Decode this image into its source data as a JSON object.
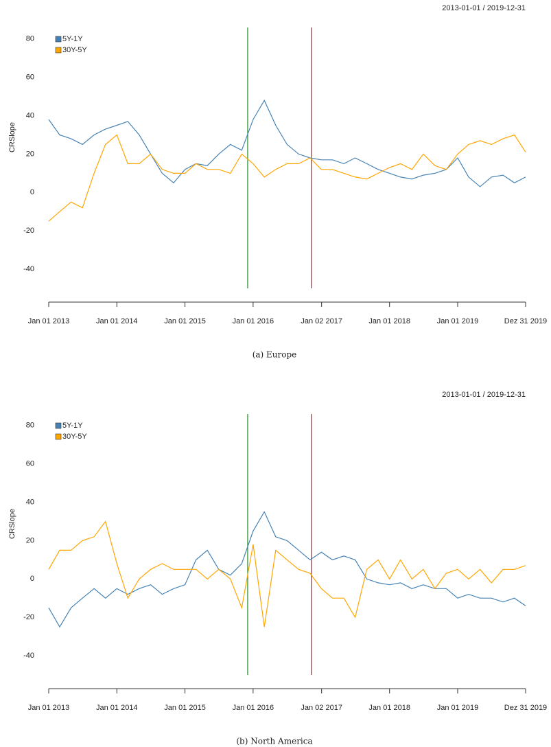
{
  "chart_data": [
    {
      "type": "line",
      "subtitle": "2013-01-01 / 2019-12-31",
      "ylabel": "CRSlope",
      "caption": "(a) Europe",
      "x": [
        "2013-01-01",
        "2013-03-01",
        "2013-05-01",
        "2013-07-01",
        "2013-09-01",
        "2013-11-01",
        "2014-01-01",
        "2014-03-01",
        "2014-05-01",
        "2014-07-01",
        "2014-09-01",
        "2014-11-01",
        "2015-01-01",
        "2015-03-01",
        "2015-05-01",
        "2015-07-01",
        "2015-09-01",
        "2015-11-01",
        "2016-01-01",
        "2016-03-01",
        "2016-05-01",
        "2016-07-01",
        "2016-09-01",
        "2016-11-01",
        "2017-01-01",
        "2017-03-01",
        "2017-05-01",
        "2017-07-01",
        "2017-09-01",
        "2017-11-01",
        "2018-01-01",
        "2018-03-01",
        "2018-05-01",
        "2018-07-01",
        "2018-09-01",
        "2018-11-01",
        "2019-01-01",
        "2019-03-01",
        "2019-05-01",
        "2019-07-01",
        "2019-09-01",
        "2019-11-01",
        "2019-12-31"
      ],
      "series": [
        {
          "name": "5Y-1Y",
          "color": "#4682b4",
          "values": [
            38,
            30,
            28,
            25,
            30,
            33,
            35,
            37,
            30,
            20,
            10,
            5,
            12,
            15,
            14,
            20,
            25,
            22,
            38,
            48,
            35,
            25,
            20,
            18,
            17,
            17,
            15,
            18,
            15,
            12,
            10,
            8,
            7,
            9,
            10,
            12,
            18,
            8,
            3,
            8,
            9,
            5,
            8
          ]
        },
        {
          "name": "30Y-5Y",
          "color": "#ffa500",
          "values": [
            -15,
            -10,
            -5,
            -8,
            10,
            25,
            30,
            15,
            15,
            20,
            12,
            10,
            10,
            15,
            12,
            12,
            10,
            20,
            15,
            8,
            12,
            15,
            15,
            18,
            12,
            12,
            10,
            8,
            7,
            10,
            13,
            15,
            12,
            20,
            14,
            12,
            20,
            25,
            27,
            25,
            28,
            30,
            21
          ]
        }
      ],
      "vlines": [
        {
          "x": "2015-12-03",
          "color": "#228b22"
        },
        {
          "x": "2016-11-08",
          "color": "#b22222"
        }
      ],
      "xlim": [
        "2013-01-01",
        "2019-12-31"
      ],
      "xticks": [
        {
          "value": "2013-01-01",
          "label": "Jan 01 2013"
        },
        {
          "value": "2014-01-01",
          "label": "Jan 01 2014"
        },
        {
          "value": "2015-01-01",
          "label": "Jan 01 2015"
        },
        {
          "value": "2016-01-01",
          "label": "Jan 01 2016"
        },
        {
          "value": "2017-01-02",
          "label": "Jan 02 2017"
        },
        {
          "value": "2018-01-01",
          "label": "Jan 01 2018"
        },
        {
          "value": "2019-01-01",
          "label": "Jan 01 2019"
        },
        {
          "value": "2019-12-31",
          "label": "Dez 31 2019"
        }
      ],
      "ylim": [
        -50,
        86
      ],
      "yticks": [
        -40,
        -20,
        0,
        20,
        40,
        60,
        80
      ],
      "legend": "top-left"
    },
    {
      "type": "line",
      "subtitle": "2013-01-01 / 2019-12-31",
      "ylabel": "CRSlope",
      "caption": "(b) North America",
      "x": [
        "2013-01-01",
        "2013-03-01",
        "2013-05-01",
        "2013-07-01",
        "2013-09-01",
        "2013-11-01",
        "2014-01-01",
        "2014-03-01",
        "2014-05-01",
        "2014-07-01",
        "2014-09-01",
        "2014-11-01",
        "2015-01-01",
        "2015-03-01",
        "2015-05-01",
        "2015-07-01",
        "2015-09-01",
        "2015-11-01",
        "2016-01-01",
        "2016-03-01",
        "2016-05-01",
        "2016-07-01",
        "2016-09-01",
        "2016-11-01",
        "2017-01-01",
        "2017-03-01",
        "2017-05-01",
        "2017-07-01",
        "2017-09-01",
        "2017-11-01",
        "2018-01-01",
        "2018-03-01",
        "2018-05-01",
        "2018-07-01",
        "2018-09-01",
        "2018-11-01",
        "2019-01-01",
        "2019-03-01",
        "2019-05-01",
        "2019-07-01",
        "2019-09-01",
        "2019-11-01",
        "2019-12-31"
      ],
      "series": [
        {
          "name": "5Y-1Y",
          "color": "#4682b4",
          "values": [
            -15,
            -25,
            -15,
            -10,
            -5,
            -10,
            -5,
            -8,
            -5,
            -3,
            -8,
            -5,
            -3,
            10,
            15,
            5,
            2,
            8,
            25,
            35,
            22,
            20,
            15,
            10,
            14,
            10,
            12,
            10,
            0,
            -2,
            -3,
            -2,
            -5,
            -3,
            -5,
            -5,
            -10,
            -8,
            -10,
            -10,
            -12,
            -10,
            -14
          ]
        },
        {
          "name": "30Y-5Y",
          "color": "#ffa500",
          "values": [
            5,
            15,
            15,
            20,
            22,
            30,
            8,
            -10,
            0,
            5,
            8,
            5,
            5,
            5,
            0,
            5,
            0,
            -15,
            18,
            -25,
            15,
            10,
            5,
            3,
            -5,
            -10,
            -10,
            -20,
            5,
            10,
            0,
            10,
            0,
            5,
            -5,
            3,
            5,
            0,
            5,
            -2,
            5,
            5,
            7
          ]
        }
      ],
      "vlines": [
        {
          "x": "2015-12-03",
          "color": "#228b22"
        },
        {
          "x": "2016-11-08",
          "color": "#b22222"
        }
      ],
      "xlim": [
        "2013-01-01",
        "2019-12-31"
      ],
      "xticks": [
        {
          "value": "2013-01-01",
          "label": "Jan 01 2013"
        },
        {
          "value": "2014-01-01",
          "label": "Jan 01 2014"
        },
        {
          "value": "2015-01-01",
          "label": "Jan 01 2015"
        },
        {
          "value": "2016-01-01",
          "label": "Jan 01 2016"
        },
        {
          "value": "2017-01-02",
          "label": "Jan 02 2017"
        },
        {
          "value": "2018-01-01",
          "label": "Jan 01 2018"
        },
        {
          "value": "2019-01-01",
          "label": "Jan 01 2019"
        },
        {
          "value": "2019-12-31",
          "label": "Dez 31 2019"
        }
      ],
      "ylim": [
        -50,
        86
      ],
      "yticks": [
        -40,
        -20,
        0,
        20,
        40,
        60,
        80
      ],
      "legend": "top-left"
    }
  ]
}
